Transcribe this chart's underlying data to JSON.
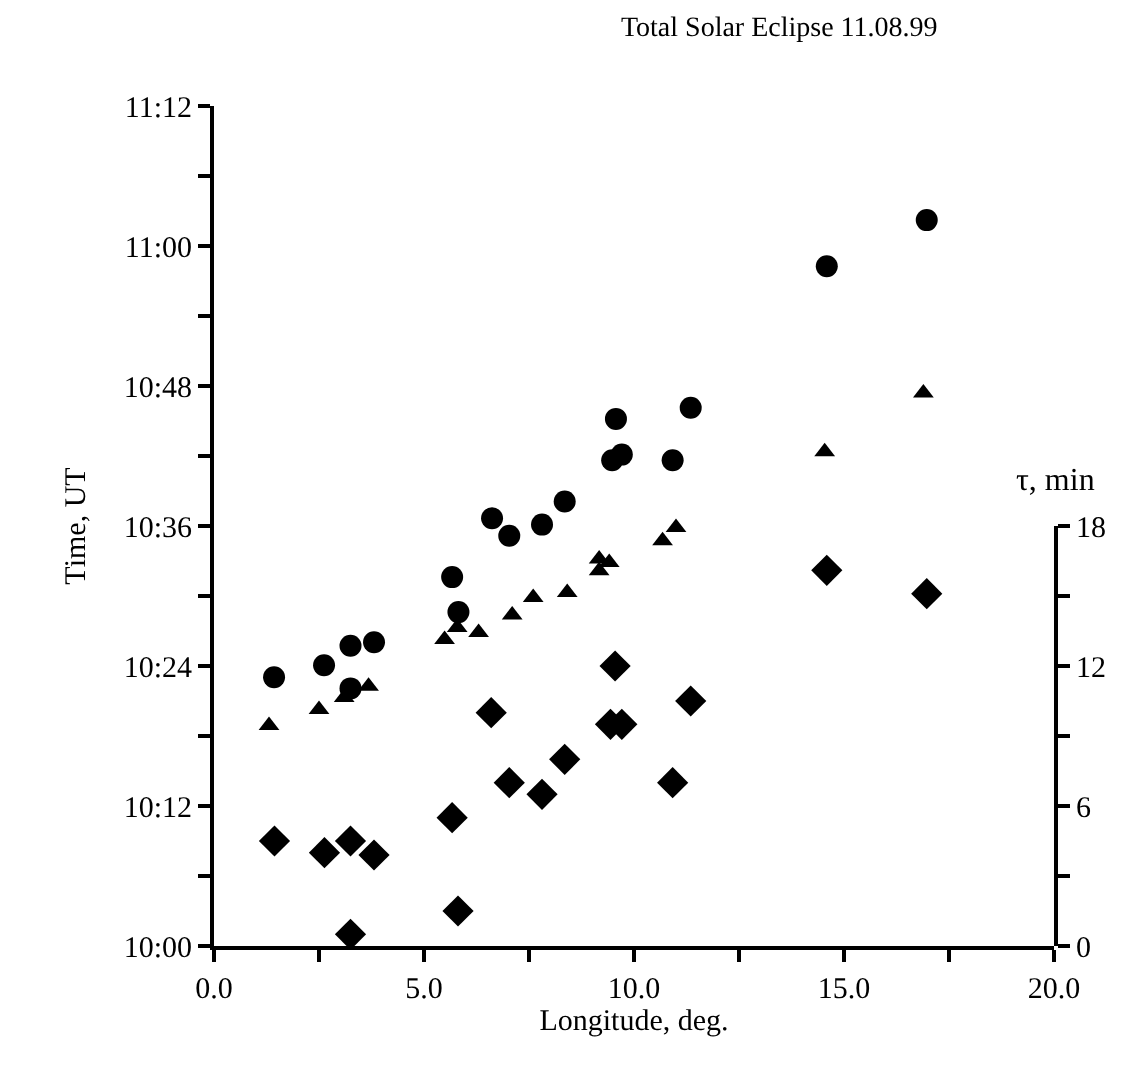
{
  "chart_data": {
    "type": "scatter",
    "title": "Total Solar Eclipse 11.08.99",
    "xlabel": "Longitude, deg.",
    "ylabel": "Time, UT",
    "y2label": "τ, min",
    "xlim": [
      0,
      20
    ],
    "xticks": [
      {
        "value": 0,
        "label": "0.0"
      },
      {
        "value": 2.5,
        "label": null
      },
      {
        "value": 5,
        "label": "5.0"
      },
      {
        "value": 7.5,
        "label": null
      },
      {
        "value": 10,
        "label": "10.0"
      },
      {
        "value": 12.5,
        "label": null
      },
      {
        "value": 15,
        "label": "15.0"
      },
      {
        "value": 17.5,
        "label": null
      },
      {
        "value": 20,
        "label": "20.0"
      }
    ],
    "ylim": [
      10,
      11.2
    ],
    "yticks": [
      {
        "value": 10,
        "label": "10:00"
      },
      {
        "value": 10.1,
        "label": null
      },
      {
        "value": 10.2,
        "label": "10:12"
      },
      {
        "value": 10.3,
        "label": null
      },
      {
        "value": 10.4,
        "label": "10:24"
      },
      {
        "value": 10.5,
        "label": null
      },
      {
        "value": 10.6,
        "label": "10:36"
      },
      {
        "value": 10.7,
        "label": null
      },
      {
        "value": 10.8,
        "label": "10:48"
      },
      {
        "value": 10.9,
        "label": null
      },
      {
        "value": 11,
        "label": "11:00"
      },
      {
        "value": 11.1,
        "label": null
      },
      {
        "value": 11.2,
        "label": "11:12"
      }
    ],
    "y2lim": [
      0,
      18
    ],
    "y2ticks": [
      0,
      {
        "value": 3,
        "label": null
      },
      6,
      {
        "value": 9,
        "label": null
      },
      12,
      {
        "value": 15,
        "label": null
      },
      18
    ],
    "grid": false,
    "series": [
      {
        "color": "#000000",
        "marker": "circle",
        "x": [
          1.43,
          2.62,
          3.25,
          3.81,
          3.25,
          5.82,
          5.67,
          6.62,
          7.03,
          7.81,
          8.35,
          9.57,
          9.48,
          9.71,
          10.92,
          11.35,
          14.59,
          16.97
        ],
        "values": [
          10.384,
          10.401,
          10.429,
          10.434,
          10.368,
          10.477,
          10.527,
          10.611,
          10.586,
          10.602,
          10.635,
          10.753,
          10.694,
          10.702,
          10.694,
          10.769,
          10.971,
          11.037
        ]
      },
      {
        "color": "#000000",
        "marker": "triangle",
        "x": [
          1.31,
          2.5,
          3.1,
          3.68,
          5.49,
          5.79,
          6.3,
          7.1,
          7.6,
          8.41,
          9.17,
          9.17,
          9.41,
          10.68,
          11.0,
          14.54,
          16.89
        ],
        "values": [
          10.315,
          10.338,
          10.355,
          10.371,
          10.438,
          10.455,
          10.448,
          10.473,
          10.498,
          10.505,
          10.536,
          10.553,
          10.548,
          10.579,
          10.598,
          10.706,
          10.79
        ]
      },
      {
        "color": "#000000",
        "marker": "diamond",
        "axis": "y2",
        "x": [
          1.44,
          2.63,
          3.25,
          3.81,
          3.25,
          5.67,
          5.81,
          6.6,
          7.03,
          7.81,
          8.35,
          9.55,
          9.44,
          9.71,
          10.92,
          11.35,
          14.59,
          16.97
        ],
        "values": [
          4.5,
          4.0,
          4.5,
          3.9,
          0.5,
          5.5,
          1.5,
          10.0,
          7.0,
          6.5,
          8.0,
          12.0,
          9.5,
          9.5,
          7.0,
          10.5,
          16.1,
          15.1
        ]
      }
    ]
  }
}
